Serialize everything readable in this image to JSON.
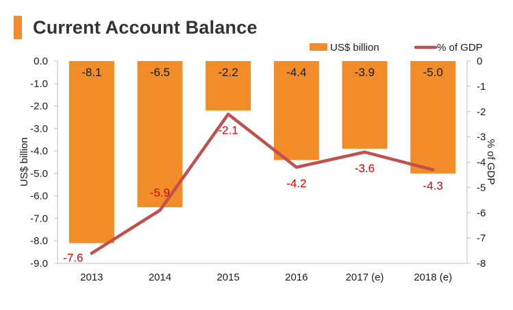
{
  "title": "Current Account Balance",
  "colors": {
    "accent": "#f28c28",
    "bar": "#f28c28",
    "line": "#c0504d",
    "line_label": "#e00000",
    "axis": "#bfbfbf",
    "text": "#1a1a1a"
  },
  "chart_data": {
    "type": "bar",
    "categories": [
      "2013",
      "2014",
      "2015",
      "2016",
      "2017 (e)",
      "2018 (e)"
    ],
    "series": [
      {
        "name": "US$ billion",
        "type": "bar",
        "axis": "left",
        "values": [
          -8.1,
          -6.5,
          -2.2,
          -4.4,
          -3.9,
          -5.0
        ],
        "labels": [
          "-8.1",
          "-6.5",
          "-2.2",
          "-4.4",
          "-3.9",
          "-5.0"
        ]
      },
      {
        "name": "% of GDP",
        "type": "line",
        "axis": "right",
        "values": [
          -7.6,
          -5.9,
          -2.1,
          -4.2,
          -3.6,
          -4.3
        ],
        "labels": [
          "-7.6",
          "-5.9",
          "-2.1",
          "-4.2",
          "-3.6",
          "-4.3"
        ]
      }
    ],
    "ylabel": "US$  billion",
    "y2label": "% of GDP",
    "ylim": [
      -9.0,
      0.0
    ],
    "y2lim": [
      -8,
      0
    ],
    "yticks": [
      "0.0",
      "-1.0",
      "-2.0",
      "-3.0",
      "-4.0",
      "-5.0",
      "-6.0",
      "-7.0",
      "-8.0",
      "-9.0"
    ],
    "y2ticks": [
      "0",
      "-1",
      "-2",
      "-3",
      "-4",
      "-5",
      "-6",
      "-7",
      "-8"
    ],
    "legend": "top-right",
    "grid": false
  }
}
